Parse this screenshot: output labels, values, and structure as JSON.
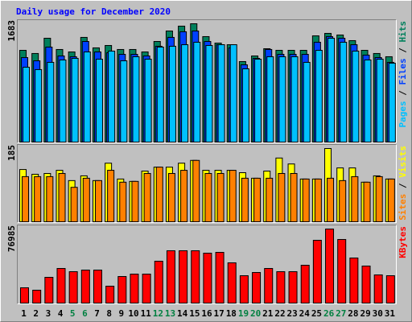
{
  "chart_data": [
    {
      "type": "bar",
      "title": "Daily usage for December 2020",
      "legend_separator": " / ",
      "ylim": [
        0,
        1683
      ],
      "yticks": [
        1683
      ],
      "series": [
        {
          "name": "Hits",
          "color": "#00805c",
          "values": [
            1305,
            1260,
            1477,
            1317,
            1282,
            1489,
            1340,
            1374,
            1317,
            1317,
            1282,
            1431,
            1580,
            1649,
            1683,
            1500,
            1408,
            1385,
            1145,
            1225,
            1328,
            1305,
            1305,
            1305,
            1511,
            1546,
            1523,
            1443,
            1305,
            1260,
            1214
          ]
        },
        {
          "name": "Files",
          "color": "#0040ff",
          "values": [
            1202,
            1156,
            1351,
            1225,
            1214,
            1431,
            1282,
            1271,
            1248,
            1248,
            1225,
            1363,
            1489,
            1569,
            1580,
            1431,
            1385,
            1340,
            1099,
            1191,
            1317,
            1248,
            1248,
            1248,
            1420,
            1500,
            1477,
            1385,
            1237,
            1202,
            1134
          ]
        },
        {
          "name": "Pages",
          "color": "#00c0ff",
          "values": [
            1065,
            1031,
            1134,
            1168,
            1191,
            1282,
            1179,
            1294,
            1156,
            1214,
            1179,
            1351,
            1363,
            1385,
            1420,
            1374,
            1385,
            1385,
            1042,
            1179,
            1214,
            1214,
            1214,
            1134,
            1305,
            1477,
            1420,
            1294,
            1168,
            1179,
            1122
          ]
        }
      ]
    },
    {
      "type": "bar",
      "legend_separator": " / ",
      "ylim": [
        0,
        185
      ],
      "yticks": [
        185
      ],
      "series": [
        {
          "name": "Visits",
          "color": "#ffff00",
          "values": [
            132,
            120,
            122,
            130,
            104,
            116,
            104,
            148,
            108,
            102,
            128,
            138,
            138,
            148,
            155,
            130,
            130,
            130,
            124,
            110,
            128,
            161,
            146,
            108,
            108,
            185,
            136,
            136,
            100,
            116,
            108
          ]
        },
        {
          "name": "Sites",
          "color": "#ff8000",
          "values": [
            114,
            114,
            114,
            122,
            87,
            110,
            104,
            130,
            100,
            102,
            122,
            138,
            122,
            130,
            155,
            122,
            122,
            130,
            110,
            110,
            110,
            122,
            122,
            108,
            108,
            110,
            104,
            114,
            100,
            114,
            108
          ]
        }
      ]
    },
    {
      "type": "bar",
      "ylim": [
        0,
        76985
      ],
      "yticks": [
        76985
      ],
      "series": [
        {
          "name": "KBytes",
          "color": "#ff0000",
          "values": [
            15903,
            13392,
            26784,
            35991,
            32643,
            34317,
            34317,
            17577,
            27621,
            30132,
            30132,
            43524,
            54405,
            54405,
            54405,
            51894,
            52731,
            41850,
            28458,
            31806,
            35991,
            32643,
            32643,
            39339,
            65286,
            76985,
            66123,
            46872,
            38502,
            29295,
            28458
          ]
        }
      ],
      "categories": [
        "1",
        "2",
        "3",
        "4",
        "5",
        "6",
        "7",
        "8",
        "9",
        "10",
        "11",
        "12",
        "13",
        "14",
        "15",
        "16",
        "17",
        "18",
        "19",
        "20",
        "21",
        "22",
        "23",
        "24",
        "25",
        "26",
        "27",
        "28",
        "29",
        "30",
        "31"
      ],
      "category_colors": [
        "#000000",
        "#000000",
        "#000000",
        "#000000",
        "#008040",
        "#008040",
        "#000000",
        "#000000",
        "#000000",
        "#000000",
        "#000000",
        "#008040",
        "#008040",
        "#000000",
        "#000000",
        "#000000",
        "#000000",
        "#000000",
        "#008040",
        "#008040",
        "#000000",
        "#000000",
        "#000000",
        "#000000",
        "#000000",
        "#008040",
        "#008040",
        "#000000",
        "#000000",
        "#000000",
        "#000000"
      ]
    }
  ]
}
